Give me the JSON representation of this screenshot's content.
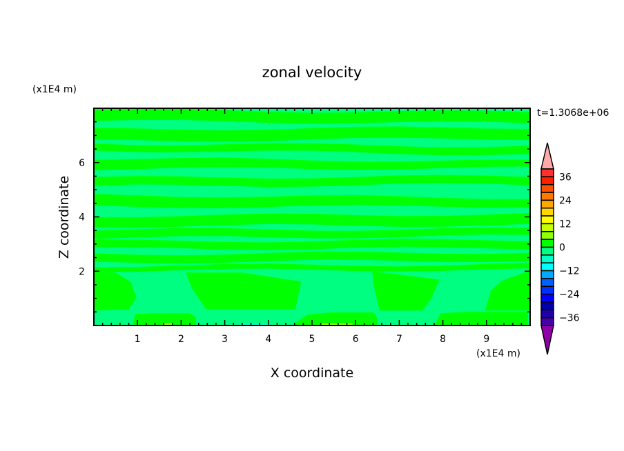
{
  "chart_data": {
    "type": "heatmap",
    "subtype": "filled-contour",
    "title": "zonal velocity",
    "xlabel": "X coordinate",
    "ylabel": "Z coordinate",
    "x_unit": "(x1E4 m)",
    "y_unit": "(x1E4 m)",
    "time_label": "t=1.3068e+06",
    "xlim": [
      0,
      10
    ],
    "ylim": [
      0,
      8
    ],
    "x_ticks": [
      1,
      2,
      3,
      4,
      5,
      6,
      7,
      8,
      9
    ],
    "y_ticks": [
      2,
      4,
      6
    ],
    "x_minor_step": 0.2,
    "y_minor_step": 0.5,
    "levels": [
      -40,
      -36,
      -32,
      -28,
      -24,
      -20,
      -16,
      -12,
      -8,
      -4,
      0,
      4,
      8,
      12,
      16,
      20,
      24,
      28,
      32,
      36,
      40
    ],
    "level_colors": [
      "#4800a8",
      "#2000a8",
      "#0000a8",
      "#0000ff",
      "#0030ff",
      "#0060ff",
      "#00a8ff",
      "#00ffff",
      "#00ffc8",
      "#00ff80",
      "#00ff00",
      "#90ff00",
      "#c8ff00",
      "#ffff00",
      "#ffd800",
      "#ffa800",
      "#ff7800",
      "#ff5000",
      "#ff2000",
      "#ff3030"
    ],
    "over_color": "#ffaaaa",
    "under_color": "#9000a8",
    "colorbar_labels": [
      "36",
      "24",
      "12",
      "0",
      "-12",
      "-24",
      "-36"
    ],
    "colorbar_label_values": [
      36,
      24,
      12,
      0,
      -12,
      -24,
      -36
    ],
    "background_level_range": [
      -4,
      0
    ],
    "bands_0_to_4": [
      {
        "z_left": [
          7.53,
          7.94
        ],
        "z_right": [
          7.45,
          7.85
        ]
      },
      {
        "z_left": [
          6.79,
          7.22
        ],
        "z_right": [
          6.9,
          7.3
        ]
      },
      {
        "z_left": [
          6.46,
          6.71
        ],
        "z_right": [
          6.3,
          6.6
        ]
      },
      {
        "z_left": [
          5.77,
          6.15
        ],
        "z_right": [
          5.8,
          6.05
        ]
      },
      {
        "z_left": [
          5.13,
          5.44
        ],
        "z_right": [
          5.2,
          5.5
        ]
      },
      {
        "z_left": [
          4.37,
          4.8
        ],
        "z_right": [
          4.4,
          4.7
        ]
      },
      {
        "z_left": [
          3.66,
          4.04
        ],
        "z_right": [
          3.7,
          4.1
        ]
      },
      {
        "z_left": [
          3.22,
          3.53
        ],
        "z_right": [
          3.3,
          3.55
        ]
      },
      {
        "z_left": [
          2.83,
          3.1
        ],
        "z_right": [
          2.85,
          3.15
        ]
      },
      {
        "z_left": [
          2.33,
          2.63
        ],
        "z_right": [
          2.4,
          2.7
        ]
      },
      {
        "z_left": [
          2.03,
          2.2
        ],
        "z_right": [
          2.05,
          2.25
        ]
      }
    ],
    "regions": [
      {
        "level": [
          0,
          4
        ],
        "points": [
          [
            0,
            2.0
          ],
          [
            0.5,
            1.95
          ],
          [
            0.85,
            1.6
          ],
          [
            0.97,
            1.0
          ],
          [
            0.8,
            0.6
          ],
          [
            0,
            0.55
          ]
        ]
      },
      {
        "level": [
          0,
          4
        ],
        "points": [
          [
            2.11,
            1.95
          ],
          [
            3.4,
            1.95
          ],
          [
            4.75,
            1.62
          ],
          [
            4.62,
            0.6
          ],
          [
            2.57,
            0.6
          ],
          [
            2.24,
            1.39
          ]
        ]
      },
      {
        "level": [
          0,
          4
        ],
        "points": [
          [
            6.38,
            2.0
          ],
          [
            7.92,
            1.69
          ],
          [
            7.73,
            0.98
          ],
          [
            7.53,
            0.55
          ],
          [
            6.55,
            0.55
          ],
          [
            6.41,
            1.5
          ]
        ]
      },
      {
        "level": [
          0,
          4
        ],
        "points": [
          [
            9.95,
            2.0
          ],
          [
            9.36,
            1.65
          ],
          [
            9.1,
            1.3
          ],
          [
            8.97,
            0.55
          ],
          [
            10,
            0.55
          ],
          [
            10,
            2.0
          ]
        ]
      },
      {
        "level": [
          0,
          4
        ],
        "points": [
          [
            0.89,
            0
          ],
          [
            0.95,
            0.42
          ],
          [
            1.3,
            0.45
          ],
          [
            2.2,
            0.45
          ],
          [
            2.34,
            0.3
          ],
          [
            2.34,
            0
          ]
        ]
      },
      {
        "level": [
          0,
          4
        ],
        "points": [
          [
            4.53,
            0
          ],
          [
            4.9,
            0.4
          ],
          [
            5.4,
            0.48
          ],
          [
            6.4,
            0.48
          ],
          [
            6.49,
            0.3
          ],
          [
            6.49,
            0
          ]
        ]
      },
      {
        "level": [
          0,
          4
        ],
        "points": [
          [
            7.8,
            0
          ],
          [
            7.95,
            0.45
          ],
          [
            8.5,
            0.5
          ],
          [
            9.95,
            0.5
          ],
          [
            9.95,
            0
          ],
          [
            7.8,
            0
          ]
        ]
      },
      {
        "level": [
          4,
          8
        ],
        "points": [
          [
            1.55,
            0
          ],
          [
            1.6,
            0.08
          ],
          [
            1.78,
            0.08
          ],
          [
            1.81,
            0
          ]
        ]
      },
      {
        "level": [
          4,
          8
        ],
        "points": [
          [
            5.17,
            0
          ],
          [
            5.25,
            0.08
          ],
          [
            5.9,
            0.08
          ],
          [
            5.95,
            0
          ]
        ]
      },
      {
        "level": [
          -8,
          -4
        ],
        "points": [
          [
            3.3,
            0
          ],
          [
            3.45,
            0.08
          ],
          [
            3.95,
            0.08
          ],
          [
            4.1,
            0
          ]
        ]
      }
    ]
  }
}
